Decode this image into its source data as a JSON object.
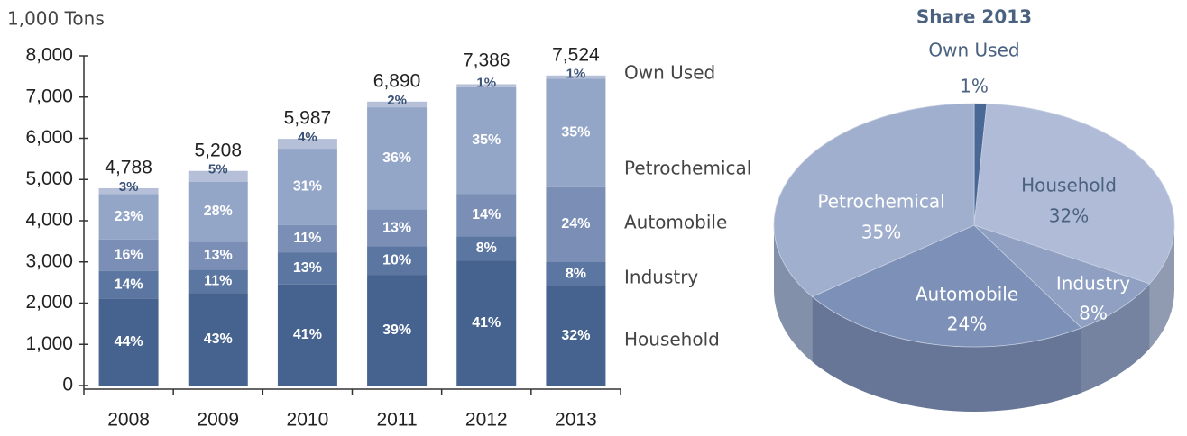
{
  "chart_data": [
    {
      "type": "bar",
      "axis_label": "1,000 Tons",
      "categories": [
        "2008",
        "2009",
        "2010",
        "2011",
        "2012",
        "2013"
      ],
      "totals": [
        4788,
        5208,
        5987,
        6890,
        7386,
        7524
      ],
      "total_labels": [
        "4,788",
        "5,208",
        "5,987",
        "6,890",
        "7,386",
        "7,524"
      ],
      "series": [
        {
          "name": "Household",
          "color": "#46638f",
          "values": [
            44,
            43,
            41,
            39,
            41,
            32
          ],
          "value_labels": [
            "44%",
            "43%",
            "41%",
            "39%",
            "41%",
            "32%"
          ]
        },
        {
          "name": "Industry",
          "color": "#5b76a1",
          "values": [
            14,
            11,
            13,
            10,
            8,
            8
          ],
          "value_labels": [
            "14%",
            "11%",
            "13%",
            "10%",
            "8%",
            "8%"
          ]
        },
        {
          "name": "Automobile",
          "color": "#7b8fb6",
          "values": [
            16,
            13,
            11,
            13,
            14,
            24
          ],
          "value_labels": [
            "16%",
            "13%",
            "11%",
            "13%",
            "14%",
            "24%"
          ]
        },
        {
          "name": "Petrochemical",
          "color": "#94a6c8",
          "values": [
            23,
            28,
            31,
            36,
            35,
            35
          ],
          "value_labels": [
            "23%",
            "28%",
            "31%",
            "36%",
            "35%",
            "35%"
          ]
        },
        {
          "name": "Own Used",
          "color": "#b5c0d8",
          "values": [
            3,
            5,
            4,
            2,
            1,
            1
          ],
          "value_labels": [
            "3%",
            "5%",
            "4%",
            "2%",
            "1%",
            "1%"
          ]
        }
      ],
      "ylim": [
        0,
        8000
      ],
      "yticks": [
        0,
        {
          "value": 1000,
          "label": "1,000"
        },
        {
          "value": 2000,
          "label": "2,000"
        },
        {
          "value": 3000,
          "label": "3,000"
        },
        {
          "value": 4000,
          "label": "4,000"
        },
        {
          "value": 5000,
          "label": "5,000"
        },
        {
          "value": 6000,
          "label": "6,000"
        },
        {
          "value": 7000,
          "label": "7,000"
        },
        {
          "value": 8000,
          "label": "8,000"
        }
      ]
    },
    {
      "type": "pie",
      "title": "Share 2013",
      "categories": [
        "Own Used",
        "Household",
        "Industry",
        "Automobile",
        "Petrochemical"
      ],
      "values": [
        1,
        32,
        8,
        24,
        35
      ],
      "value_labels": [
        "1%",
        "32%",
        "8%",
        "24%",
        "35%"
      ],
      "colors": [
        "#4a6896",
        "#b0bcd7",
        "#8fa0c3",
        "#7d90b7",
        "#a0afce"
      ]
    }
  ]
}
